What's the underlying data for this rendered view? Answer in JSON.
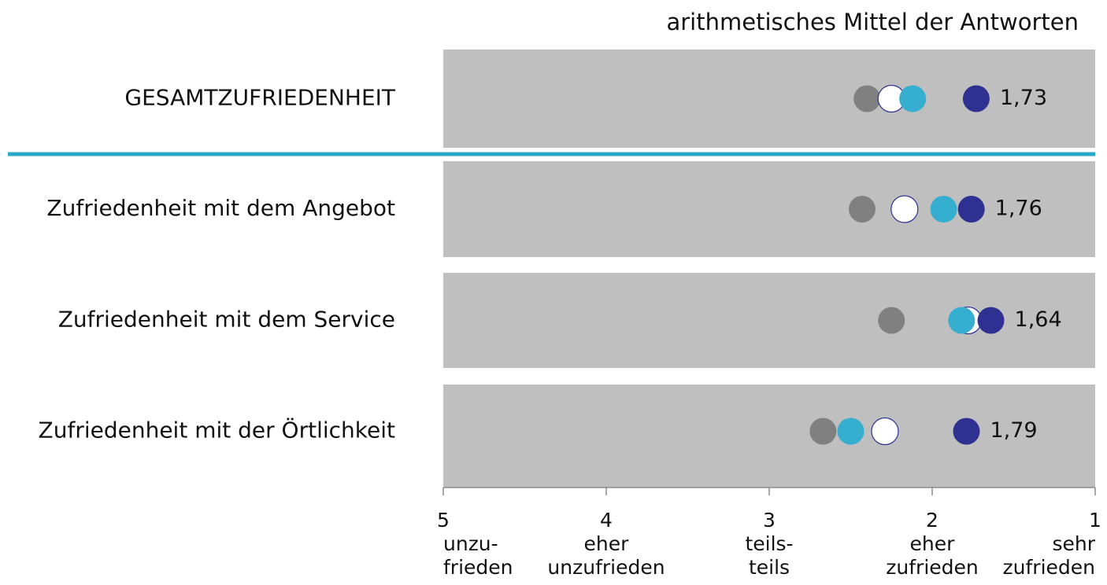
{
  "chart_data": {
    "type": "dot",
    "title": "arithmetisches Mittel der Antworten",
    "categories": [
      "GESAMTZUFRIEDENHEIT",
      "Zufriedenheit mit dem Angebot",
      "Zufriedenheit mit dem Service",
      "Zufriedenheit mit der Örtlichkeit"
    ],
    "series": [
      {
        "color": "#808080",
        "values": [
          2.4,
          2.43,
          2.25,
          2.67
        ]
      },
      {
        "color": "#ffffff",
        "values": [
          2.25,
          2.17,
          1.78,
          2.29
        ]
      },
      {
        "color": "#35aed0",
        "values": [
          2.12,
          1.93,
          1.82,
          2.5
        ]
      },
      {
        "color": "#2e3192",
        "values": [
          1.73,
          1.76,
          1.64,
          1.79
        ],
        "value_labels": [
          "1,73",
          "1,76",
          "1,64",
          "1,79"
        ]
      }
    ],
    "xlim": [
      5,
      1
    ],
    "xticks": [
      5,
      4,
      3,
      2,
      1
    ],
    "xtick_descriptions": [
      [
        "unzu-",
        "frieden"
      ],
      [
        "eher",
        "unzufrieden"
      ],
      [
        "teils-",
        "teils"
      ],
      [
        "eher",
        "zufrieden"
      ],
      [
        "sehr",
        "zufrieden"
      ]
    ]
  }
}
